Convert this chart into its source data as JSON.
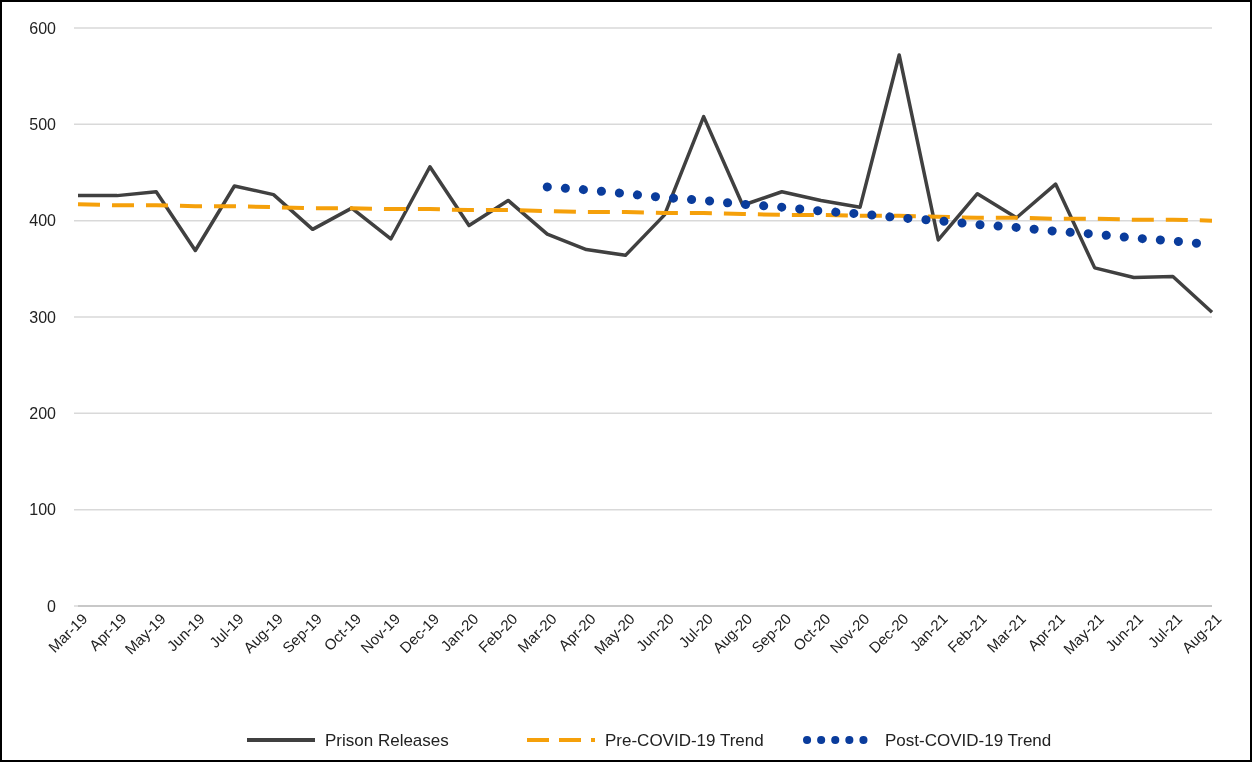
{
  "chart_data": {
    "type": "line",
    "categories": [
      "Mar-19",
      "Apr-19",
      "May-19",
      "Jun-19",
      "Jul-19",
      "Aug-19",
      "Sep-19",
      "Oct-19",
      "Nov-19",
      "Dec-19",
      "Jan-20",
      "Feb-20",
      "Mar-20",
      "Apr-20",
      "May-20",
      "Jun-20",
      "Jul-20",
      "Aug-20",
      "Sep-20",
      "Oct-20",
      "Nov-20",
      "Dec-20",
      "Jan-21",
      "Feb-21",
      "Mar-21",
      "Apr-21",
      "May-21",
      "Jun-21",
      "Jul-21",
      "Aug-21"
    ],
    "series": [
      {
        "name": "Prison Releases",
        "color": "#404040",
        "line_style": "solid",
        "values": [
          426,
          426,
          430,
          369,
          436,
          427,
          391,
          413,
          381,
          456,
          395,
          421,
          386,
          370,
          364,
          406,
          508,
          416,
          430,
          421,
          414,
          572,
          380,
          428,
          403,
          438,
          351,
          341,
          342,
          305
        ]
      },
      {
        "name": "Pre-COVID-19 Trend",
        "color": "#f5a00a",
        "line_style": "dashed",
        "values": [
          417,
          416,
          416,
          415,
          415,
          414,
          413,
          413,
          412,
          412,
          411,
          411,
          410,
          409,
          409,
          408,
          408,
          407,
          406,
          406,
          405,
          405,
          404,
          403,
          403,
          402,
          402,
          401,
          401,
          400
        ]
      },
      {
        "name": "Post-COVID-19 Trend",
        "color": "#0a3c9c",
        "line_style": "dotted",
        "values": [
          null,
          null,
          null,
          null,
          null,
          null,
          null,
          null,
          null,
          null,
          null,
          null,
          435,
          432,
          428,
          424,
          421,
          417,
          414,
          410,
          407,
          403,
          400,
          396,
          393,
          389,
          386,
          382,
          379,
          375
        ]
      }
    ],
    "ylim": [
      0,
      600
    ],
    "yticks": [
      0,
      100,
      200,
      300,
      400,
      500,
      600
    ],
    "grid": "y",
    "legend": "bottom",
    "marker": "none"
  }
}
